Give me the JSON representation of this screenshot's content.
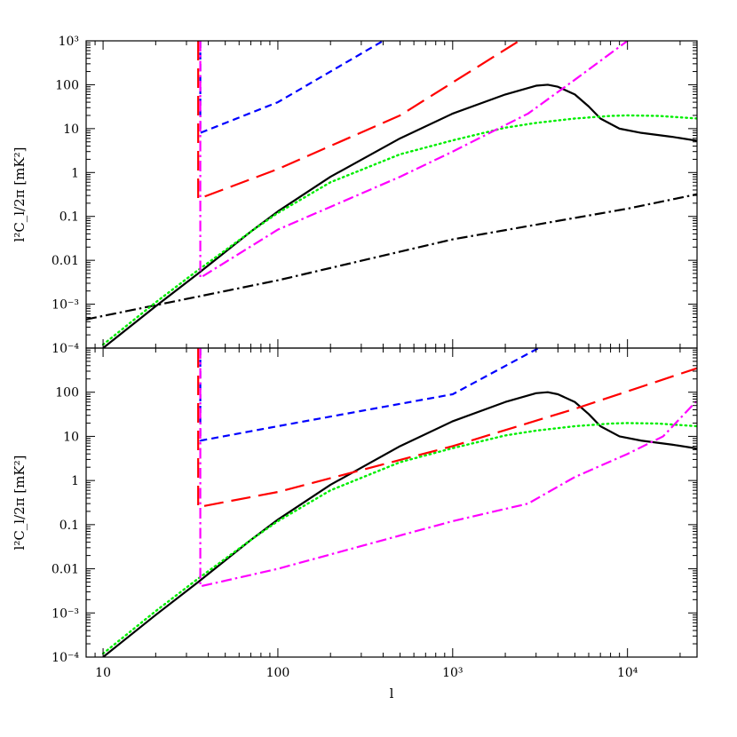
{
  "chart_data": {
    "type": "line",
    "x_scale": "log",
    "y_scale": "log",
    "xlim": [
      8,
      25000
    ],
    "ylim": [
      0.0001,
      1000
    ],
    "xlabel": "l",
    "x_ticks": [
      {
        "value": 10,
        "label": "10"
      },
      {
        "value": 100,
        "label": "100"
      },
      {
        "value": 1000,
        "label": "10³"
      },
      {
        "value": 10000,
        "label": "10⁴"
      }
    ],
    "grid": false,
    "legend": "none",
    "panels": [
      {
        "id": "top",
        "ylabel": "l²C_l/2π  [mK²]",
        "y_ticks": [
          {
            "value": 0.0001,
            "label": "10⁻⁴"
          },
          {
            "value": 0.001,
            "label": "10⁻³"
          },
          {
            "value": 0.01,
            "label": "0.01"
          },
          {
            "value": 0.1,
            "label": "0.1"
          },
          {
            "value": 1,
            "label": "1"
          },
          {
            "value": 10,
            "label": "10"
          },
          {
            "value": 100,
            "label": "100"
          },
          {
            "value": 1000,
            "label": "10³"
          }
        ],
        "series": [
          {
            "color": "#000000",
            "dash": "solid",
            "points": [
              [
                10,
                0.0001
              ],
              [
                20,
                0.0009
              ],
              [
                35,
                0.005
              ],
              [
                70,
                0.045
              ],
              [
                100,
                0.13
              ],
              [
                200,
                0.8
              ],
              [
                500,
                6
              ],
              [
                1000,
                22
              ],
              [
                2000,
                60
              ],
              [
                3000,
                95
              ],
              [
                3500,
                100
              ],
              [
                4000,
                90
              ],
              [
                5000,
                60
              ],
              [
                6000,
                32
              ],
              [
                7000,
                17
              ],
              [
                9000,
                10
              ],
              [
                12000,
                8
              ],
              [
                18000,
                6.5
              ],
              [
                25000,
                5.3
              ]
            ]
          },
          {
            "color": "#000000",
            "dash": "dashdot",
            "points": [
              [
                8,
                0.00045
              ],
              [
                100,
                0.0035
              ],
              [
                1000,
                0.03
              ],
              [
                10000,
                0.15
              ],
              [
                25000,
                0.32
              ]
            ]
          },
          {
            "color": "#00ee00",
            "dash": "dotted",
            "points": [
              [
                10,
                0.00012
              ],
              [
                20,
                0.0011
              ],
              [
                35,
                0.006
              ],
              [
                70,
                0.045
              ],
              [
                100,
                0.12
              ],
              [
                200,
                0.6
              ],
              [
                500,
                2.6
              ],
              [
                1000,
                5.4
              ],
              [
                2000,
                10.5
              ],
              [
                3000,
                13.5
              ],
              [
                5000,
                17
              ],
              [
                8000,
                19.5
              ],
              [
                10000,
                20
              ],
              [
                15000,
                19.5
              ],
              [
                25000,
                17
              ]
            ]
          },
          {
            "color": "#0000ff",
            "dash": "shortdash",
            "points": [
              [
                36,
                1000
              ],
              [
                36,
                8
              ],
              [
                100,
                40
              ],
              [
                200,
                200
              ],
              [
                400,
                1000
              ]
            ]
          },
          {
            "color": "#ff0000",
            "dash": "longdash",
            "points": [
              [
                35,
                1000
              ],
              [
                35,
                0.25
              ],
              [
                100,
                1.2
              ],
              [
                500,
                20
              ],
              [
                2400,
                1000
              ]
            ]
          },
          {
            "color": "#ff00ff",
            "dash": "dashdot",
            "points": [
              [
                36,
                1000
              ],
              [
                36,
                0.004
              ],
              [
                100,
                0.05
              ],
              [
                500,
                0.8
              ],
              [
                1000,
                3
              ],
              [
                2700,
                22
              ],
              [
                5000,
                130
              ],
              [
                10000,
                1000
              ]
            ]
          }
        ]
      },
      {
        "id": "bottom",
        "ylabel": "l²C_l/2π  [mK²]",
        "y_ticks": [
          {
            "value": 0.0001,
            "label": "10⁻⁴"
          },
          {
            "value": 0.001,
            "label": "10⁻³"
          },
          {
            "value": 0.01,
            "label": "0.01"
          },
          {
            "value": 0.1,
            "label": "0.1"
          },
          {
            "value": 1,
            "label": "1"
          },
          {
            "value": 10,
            "label": "10"
          },
          {
            "value": 100,
            "label": "100"
          }
        ],
        "series": [
          {
            "color": "#000000",
            "dash": "solid",
            "points": [
              [
                10,
                0.0001
              ],
              [
                20,
                0.0009
              ],
              [
                35,
                0.005
              ],
              [
                70,
                0.045
              ],
              [
                100,
                0.13
              ],
              [
                200,
                0.8
              ],
              [
                500,
                6
              ],
              [
                1000,
                22
              ],
              [
                2000,
                60
              ],
              [
                3000,
                95
              ],
              [
                3500,
                100
              ],
              [
                4000,
                90
              ],
              [
                5000,
                60
              ],
              [
                6000,
                32
              ],
              [
                7000,
                17
              ],
              [
                9000,
                10
              ],
              [
                12000,
                8
              ],
              [
                18000,
                6.5
              ],
              [
                25000,
                5.3
              ]
            ]
          },
          {
            "color": "#00ee00",
            "dash": "dotted",
            "points": [
              [
                10,
                0.00012
              ],
              [
                20,
                0.0011
              ],
              [
                35,
                0.006
              ],
              [
                70,
                0.045
              ],
              [
                100,
                0.12
              ],
              [
                200,
                0.6
              ],
              [
                500,
                2.6
              ],
              [
                1000,
                5.4
              ],
              [
                2000,
                10.5
              ],
              [
                3000,
                13.5
              ],
              [
                5000,
                17
              ],
              [
                8000,
                19.5
              ],
              [
                10000,
                20
              ],
              [
                15000,
                19.5
              ],
              [
                25000,
                17
              ]
            ]
          },
          {
            "color": "#0000ff",
            "dash": "shortdash",
            "points": [
              [
                36,
                1000
              ],
              [
                36,
                8
              ],
              [
                100,
                17
              ],
              [
                1000,
                90
              ],
              [
                3100,
                1000
              ]
            ]
          },
          {
            "color": "#ff0000",
            "dash": "longdash",
            "points": [
              [
                35,
                1000
              ],
              [
                35,
                0.25
              ],
              [
                100,
                0.55
              ],
              [
                1000,
                6
              ],
              [
                5000,
                42
              ],
              [
                25000,
                350
              ]
            ]
          },
          {
            "color": "#ff00ff",
            "dash": "dashdot",
            "points": [
              [
                36,
                1000
              ],
              [
                36,
                0.004
              ],
              [
                100,
                0.01
              ],
              [
                1000,
                0.12
              ],
              [
                2700,
                0.3
              ],
              [
                5000,
                1.2
              ],
              [
                10000,
                4
              ],
              [
                16000,
                10
              ],
              [
                25000,
                65
              ]
            ]
          }
        ]
      }
    ]
  }
}
